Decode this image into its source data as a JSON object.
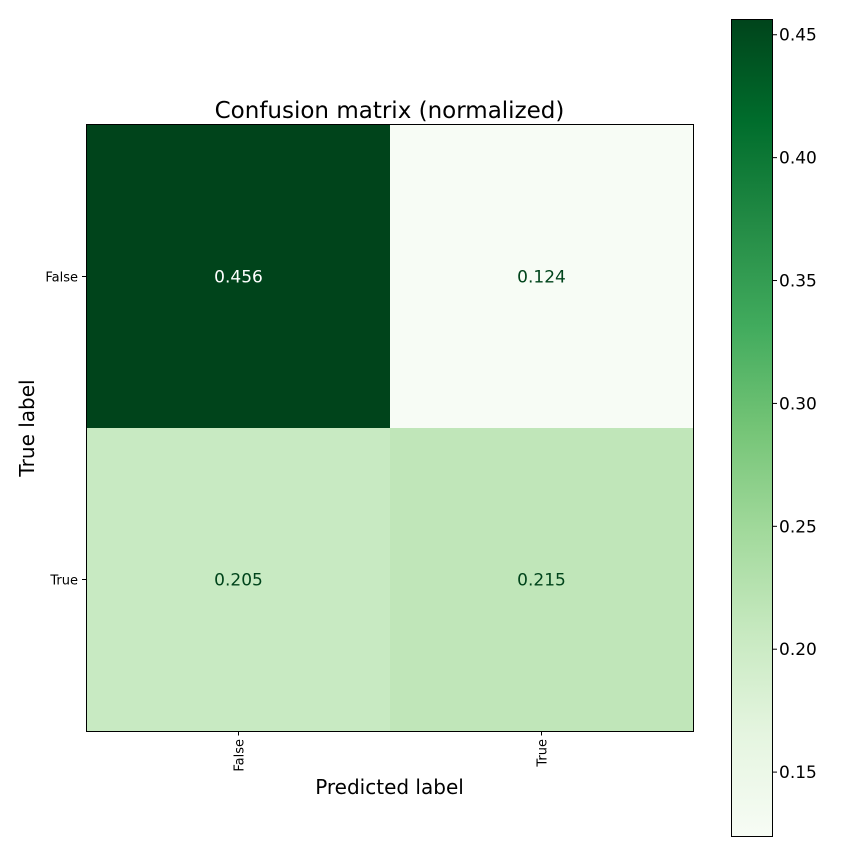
{
  "chart_data": {
    "type": "heatmap",
    "title": "Confusion matrix (normalized)",
    "xlabel": "Predicted label",
    "ylabel": "True label",
    "x_categories": [
      "False",
      "True"
    ],
    "y_categories": [
      "False",
      "True"
    ],
    "values": [
      [
        0.456,
        0.124
      ],
      [
        0.205,
        0.215
      ]
    ],
    "value_labels": [
      [
        "0.456",
        "0.124"
      ],
      [
        "0.205",
        "0.215"
      ]
    ],
    "colormap": "Greens",
    "colorbar": {
      "range": [
        0.124,
        0.456
      ],
      "ticks": [
        0.15,
        0.2,
        0.25,
        0.3,
        0.35,
        0.4,
        0.45
      ],
      "tick_labels": [
        "0.15",
        "0.20",
        "0.25",
        "0.30",
        "0.35",
        "0.40",
        "0.45"
      ]
    },
    "colors": {
      "text_on_dark": "#ffffff",
      "text_on_light": "#00441b"
    }
  }
}
